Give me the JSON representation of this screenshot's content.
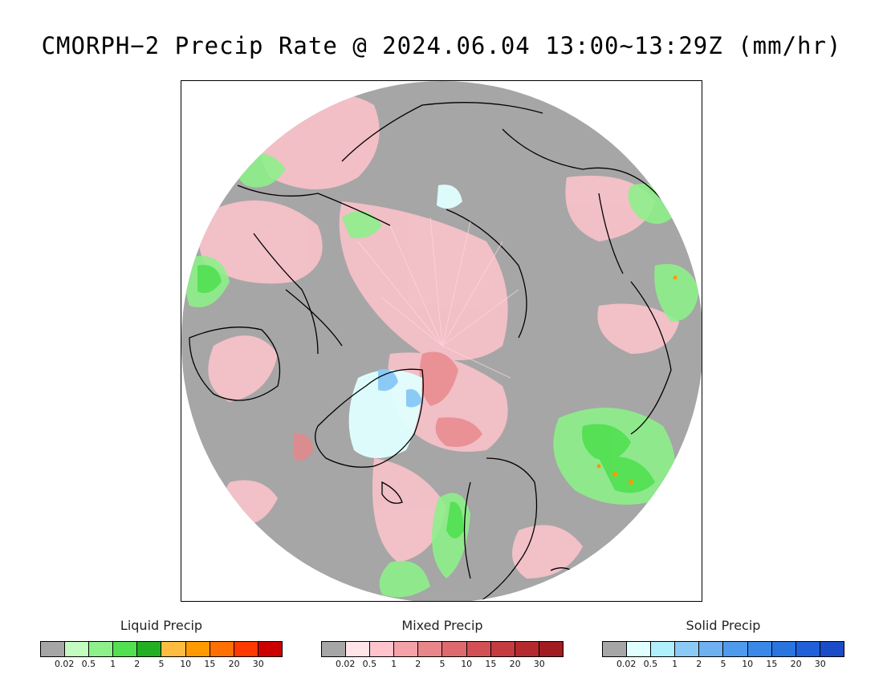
{
  "title": "CMORPH−2 Precip Rate @ 2024.06.04 13:00~13:29Z (mm/hr)",
  "legends": [
    {
      "label": "Liquid Precip",
      "colors": [
        "#a6a6a6",
        "#c4fcc0",
        "#8ef08a",
        "#50e050",
        "#22b022",
        "#ffbc40",
        "#ff9a00",
        "#ff7000",
        "#ff3a00",
        "#cc0000"
      ],
      "ticks": [
        "0.02",
        "0.5",
        "1",
        "2",
        "5",
        "10",
        "15",
        "20",
        "30"
      ]
    },
    {
      "label": "Mixed Precip",
      "colors": [
        "#a6a6a6",
        "#ffe4e8",
        "#ffc4cc",
        "#f4a2a8",
        "#e8868a",
        "#de6a6e",
        "#d25054",
        "#c43c40",
        "#b42a2e",
        "#a01c20"
      ],
      "ticks": [
        "0.02",
        "0.5",
        "1",
        "2",
        "5",
        "10",
        "15",
        "20",
        "30"
      ]
    },
    {
      "label": "Solid Precip",
      "colors": [
        "#a6a6a6",
        "#e0ffff",
        "#b0f0fc",
        "#8ccaf6",
        "#6eb0f0",
        "#4e9aec",
        "#3a88e8",
        "#2a74e0",
        "#2060d8",
        "#1a4cc8"
      ],
      "ticks": [
        "0.02",
        "0.5",
        "1",
        "2",
        "5",
        "10",
        "15",
        "20",
        "30"
      ]
    }
  ],
  "map": {
    "projection": "polar-stereographic-north",
    "background_color": "#a6a6a6",
    "coastline_color": "#000000"
  }
}
